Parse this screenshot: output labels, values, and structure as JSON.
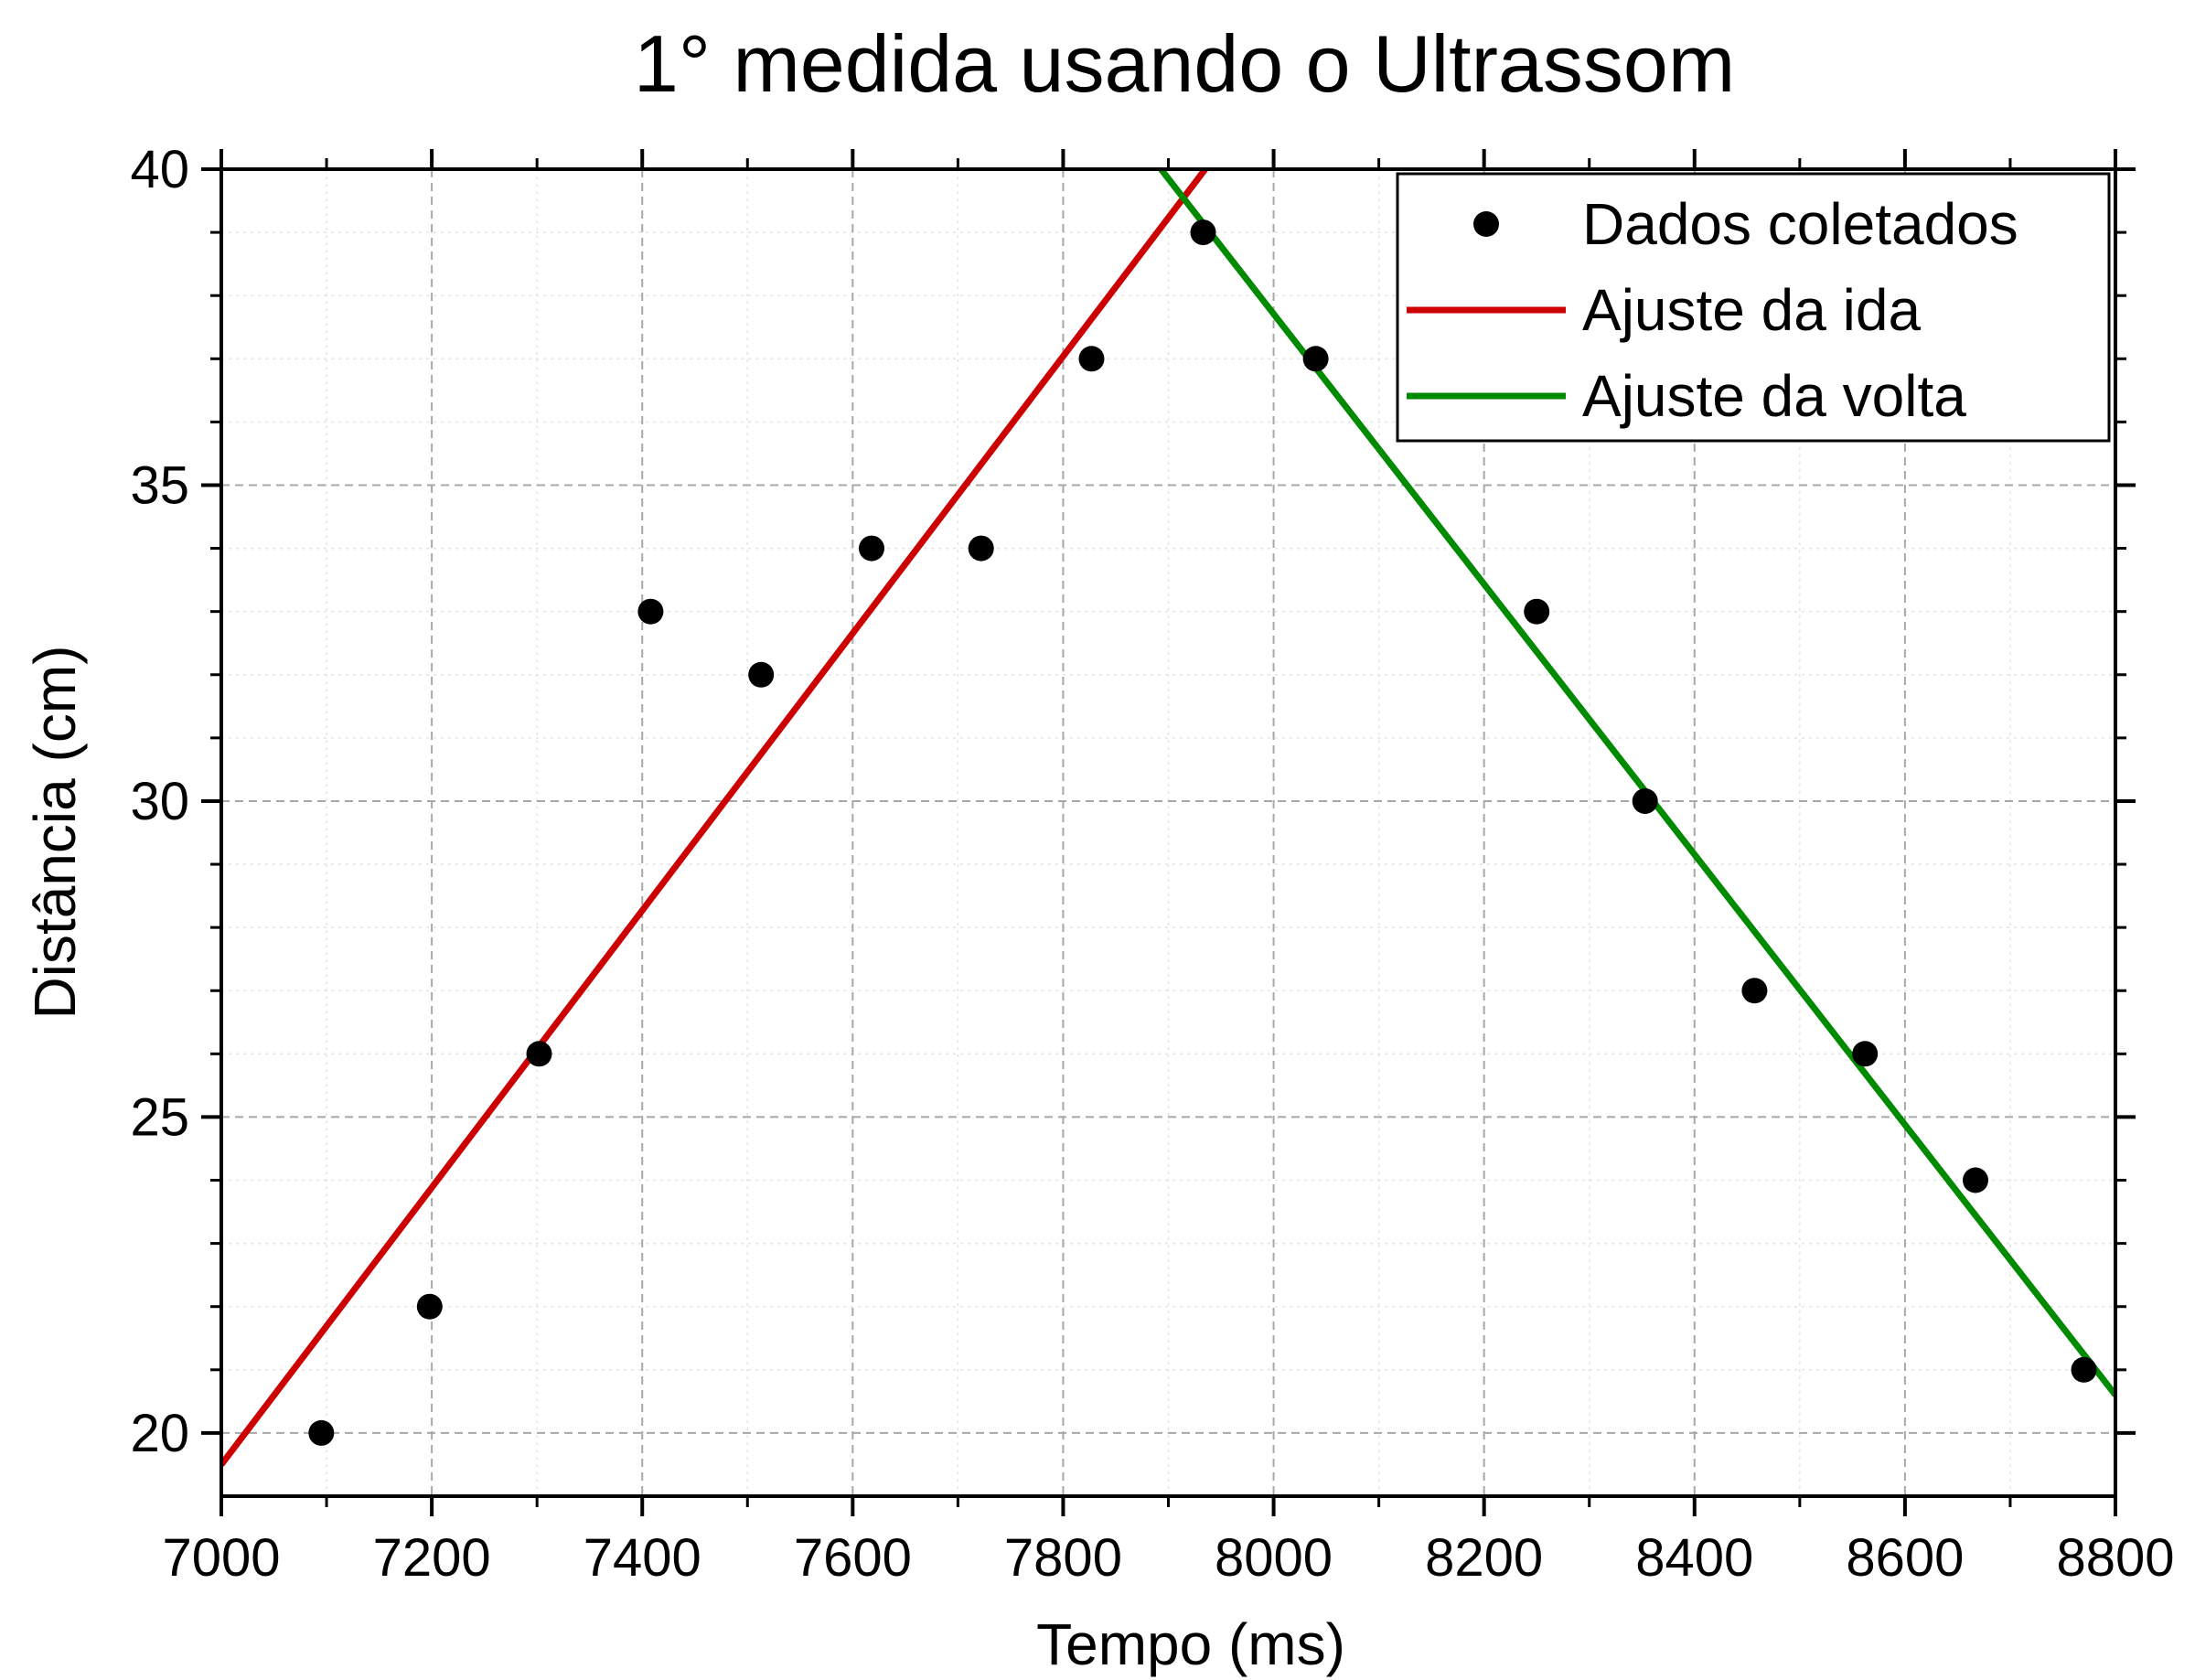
{
  "chart_data": {
    "type": "scatter",
    "title": "1° medida usando o Ultrassom",
    "xlabel": "Tempo (ms)",
    "ylabel": "Distância (cm)",
    "xlim": [
      7000,
      8800
    ],
    "ylim": [
      19,
      40
    ],
    "x_ticks": [
      "7000",
      "7200",
      "7400",
      "7600",
      "7800",
      "8000",
      "8200",
      "8400",
      "8600",
      "8800"
    ],
    "y_ticks": [
      "20",
      "25",
      "30",
      "35",
      "40"
    ],
    "grid": true,
    "legend_position": "top-right",
    "series": [
      {
        "name": "Dados coletados",
        "kind": "scatter",
        "color": "#000000",
        "points": [
          [
            7095,
            20
          ],
          [
            7198,
            22
          ],
          [
            7302,
            26
          ],
          [
            7408,
            33
          ],
          [
            7513,
            32
          ],
          [
            7618,
            34
          ],
          [
            7722,
            34
          ],
          [
            7827,
            37
          ],
          [
            7933,
            39
          ],
          [
            8040,
            37
          ],
          [
            8250,
            33
          ],
          [
            8353,
            30
          ],
          [
            8457,
            27
          ],
          [
            8562,
            26
          ],
          [
            8667,
            24
          ],
          [
            8770,
            21
          ]
        ]
      },
      {
        "name": "Ajuste da ida",
        "kind": "line",
        "color": "#cc0000",
        "points": [
          [
            7000,
            19.5
          ],
          [
            7935,
            40
          ]
        ]
      },
      {
        "name": "Ajuste da volta",
        "kind": "line",
        "color": "#008a00",
        "points": [
          [
            7893,
            40
          ],
          [
            8800,
            20.6
          ]
        ]
      }
    ]
  }
}
